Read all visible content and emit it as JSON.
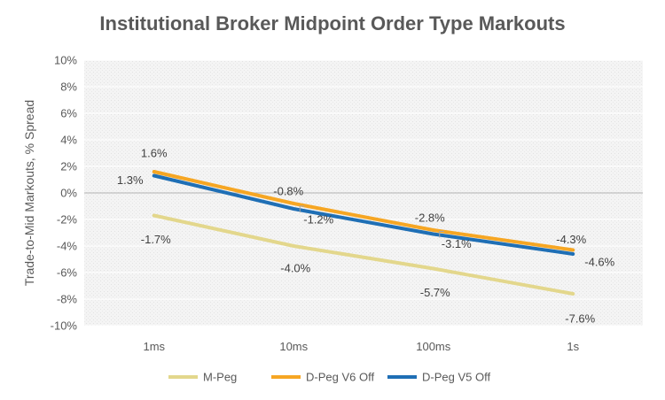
{
  "chart_data": {
    "type": "line",
    "title": "Institutional Broker Midpoint Order Type Markouts",
    "xlabel": "",
    "ylabel": "Trade-to-Mid Markouts, % Spread",
    "categories": [
      "1ms",
      "10ms",
      "100ms",
      "1s"
    ],
    "ylim": [
      -10,
      10
    ],
    "yticks": [
      10,
      8,
      6,
      4,
      2,
      0,
      -2,
      -4,
      -6,
      -8,
      -10
    ],
    "ytick_labels": [
      "10%",
      "8%",
      "6%",
      "4%",
      "2%",
      "0%",
      "-2%",
      "-4%",
      "-6%",
      "-8%",
      "-10%"
    ],
    "grid": true,
    "legend_position": "bottom",
    "series": [
      {
        "name": "M-Peg",
        "color": "#E3D78C",
        "values": [
          -1.7,
          -4.0,
          -5.7,
          -7.6
        ],
        "labels": [
          "-1.7%",
          "-4.0%",
          "-5.7%",
          "-7.6%"
        ]
      },
      {
        "name": "D-Peg V6 Off",
        "color": "#F6A623",
        "values": [
          1.6,
          -0.8,
          -2.8,
          -4.3
        ],
        "labels": [
          "1.6%",
          "-0.8%",
          "-2.8%",
          "-4.3%"
        ]
      },
      {
        "name": "D-Peg V5 Off",
        "color": "#1F6FB5",
        "values": [
          1.3,
          -1.2,
          -3.1,
          -4.6
        ],
        "labels": [
          "1.3%",
          "-1.2%",
          "-3.1%",
          "-4.6%"
        ]
      }
    ]
  }
}
